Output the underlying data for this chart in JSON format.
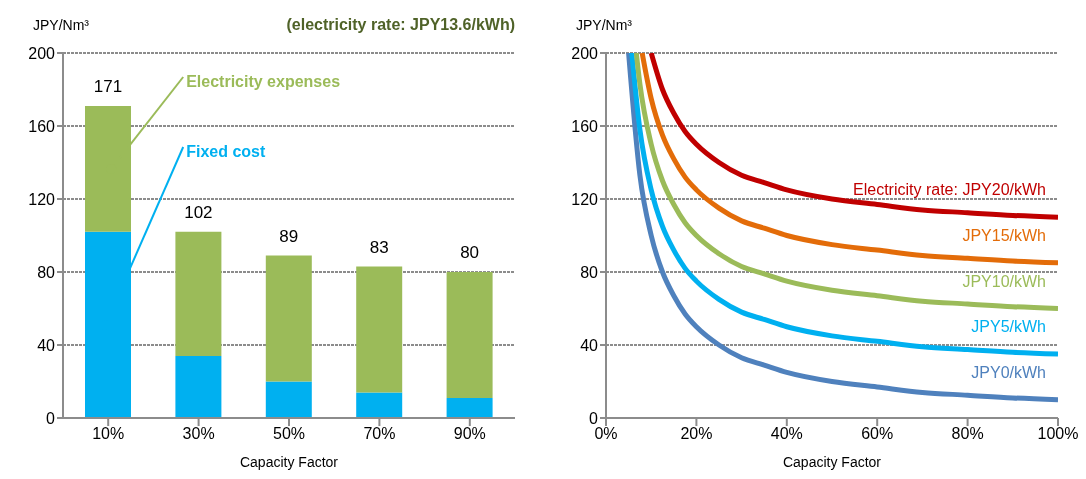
{
  "chart_data": [
    {
      "type": "bar",
      "title": "(electricity rate: JPY13.6/kWh)",
      "ylabel": "JPY/Nm³",
      "xlabel": "Capacity Factor",
      "categories": [
        "10%",
        "30%",
        "50%",
        "70%",
        "90%"
      ],
      "stacked": true,
      "series": [
        {
          "name": "Fixed cost",
          "color": "#00b0f0",
          "values": [
            102,
            34,
            20,
            14,
            11
          ]
        },
        {
          "name": "Electricity expenses",
          "color": "#9bbb59",
          "values": [
            69,
            68,
            69,
            69,
            69
          ]
        }
      ],
      "totals": [
        "171",
        "102",
        "89",
        "83",
        "80"
      ],
      "ylim": [
        0,
        200
      ],
      "yticks": [
        0,
        40,
        80,
        120,
        160,
        200
      ],
      "grid": "y"
    },
    {
      "type": "line",
      "ylabel": "JPY/Nm³",
      "xlabel": "Capacity Factor",
      "xlim": [
        0,
        100
      ],
      "xticks": [
        {
          "value": 0,
          "label": "0%"
        },
        {
          "value": 20,
          "label": "20%"
        },
        {
          "value": 40,
          "label": "40%"
        },
        {
          "value": 60,
          "label": "60%"
        },
        {
          "value": 80,
          "label": "80%"
        },
        {
          "value": 100,
          "label": "100%"
        }
      ],
      "ylim": [
        0,
        200
      ],
      "yticks": [
        0,
        40,
        80,
        120,
        160,
        200
      ],
      "grid": "y",
      "series": [
        {
          "name": "JPY0/kWh",
          "color": "#4f81bd",
          "x": [
            5,
            7.5,
            10,
            12.5,
            15,
            17.5,
            20,
            25,
            30,
            35,
            40,
            50,
            60,
            70,
            80,
            90,
            100
          ],
          "values": [
            200,
            133,
            100,
            80,
            67,
            57,
            50,
            40,
            33,
            29,
            25,
            20,
            17,
            14,
            12.5,
            11,
            10
          ]
        },
        {
          "name": "JPY5/kWh",
          "color": "#00b0f0",
          "x": [
            5.7,
            7.5,
            10,
            12.5,
            15,
            17.5,
            20,
            25,
            30,
            35,
            40,
            50,
            60,
            70,
            80,
            90,
            100
          ],
          "values": [
            200,
            158,
            125,
            105,
            92,
            82,
            75,
            65,
            58,
            54,
            50,
            45,
            42,
            39,
            37.5,
            36,
            35
          ]
        },
        {
          "name": "JPY10/kWh",
          "color": "#9bbb59",
          "x": [
            6.7,
            7.5,
            10,
            12.5,
            15,
            17.5,
            20,
            25,
            30,
            35,
            40,
            50,
            60,
            70,
            80,
            90,
            100
          ],
          "values": [
            200,
            183,
            150,
            130,
            117,
            107,
            100,
            90,
            83,
            79,
            75,
            70,
            67,
            64,
            62.5,
            61,
            60
          ]
        },
        {
          "name": "JPY15/kWh",
          "color": "#e36c09",
          "x": [
            8,
            10,
            12.5,
            15,
            17.5,
            20,
            25,
            30,
            35,
            40,
            50,
            60,
            70,
            80,
            90,
            100
          ],
          "values": [
            200,
            175,
            155,
            142,
            132,
            125,
            115,
            108,
            104,
            100,
            95,
            92,
            89,
            87.5,
            86,
            85
          ]
        },
        {
          "name": "Electricity rate: JPY20/kWh",
          "color": "#c00000",
          "x": [
            10,
            12.5,
            15,
            17.5,
            20,
            25,
            30,
            35,
            40,
            50,
            60,
            70,
            80,
            90,
            100
          ],
          "values": [
            200,
            180,
            167,
            157,
            150,
            140,
            133,
            129,
            125,
            120,
            117,
            114,
            112.5,
            111,
            110
          ]
        }
      ]
    }
  ]
}
